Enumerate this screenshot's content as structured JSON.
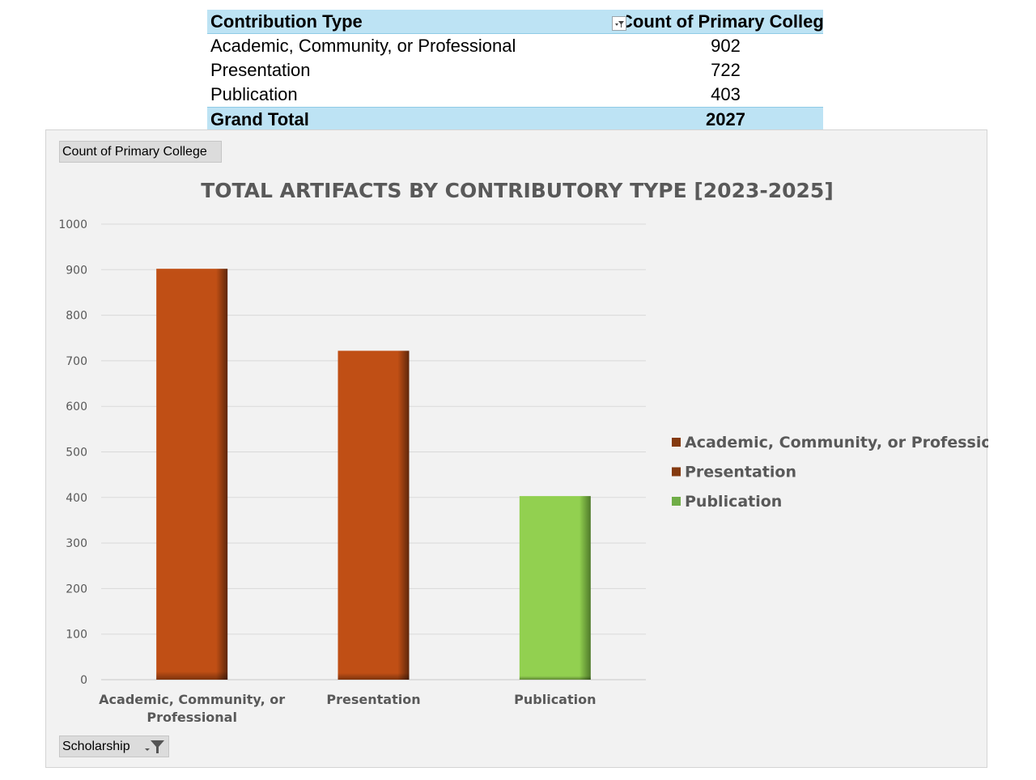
{
  "pivot_table": {
    "header": {
      "row_label": "Contribution Type",
      "value_label": "Count of Primary College"
    },
    "rows": [
      {
        "label": "Academic, Community, or Professional",
        "value": "902"
      },
      {
        "label": "Presentation",
        "value": "722"
      },
      {
        "label": "Publication",
        "value": "403"
      }
    ],
    "total": {
      "label": "Grand Total",
      "value": "2027"
    }
  },
  "chart_buttons": {
    "value_field": "Count of Primary College",
    "axis_field": "Scholarship"
  },
  "chart_data": {
    "type": "bar",
    "title": "TOTAL ARTIFACTS BY CONTRIBUTORY TYPE [2023-2025]",
    "categories": [
      "Academic, Community, or Professional",
      "Presentation",
      "Publication"
    ],
    "category_label_lines": [
      [
        "Academic, Community, or",
        "Professional"
      ],
      [
        "Presentation"
      ],
      [
        "Publication"
      ]
    ],
    "values": [
      902,
      722,
      403
    ],
    "colors": [
      "#c04f15",
      "#c04f15",
      "#92d050"
    ],
    "ylim": [
      0,
      1000
    ],
    "yticks": [
      0,
      100,
      200,
      300,
      400,
      500,
      600,
      700,
      800,
      900,
      1000
    ],
    "grid": true,
    "legend_position": "right",
    "legend": [
      {
        "label": "Academic, Community, or Professional",
        "color": "#843a10"
      },
      {
        "label": "Presentation",
        "color": "#843a10"
      },
      {
        "label": "Publication",
        "color": "#70ad47"
      }
    ],
    "xlabel": "",
    "ylabel": ""
  }
}
